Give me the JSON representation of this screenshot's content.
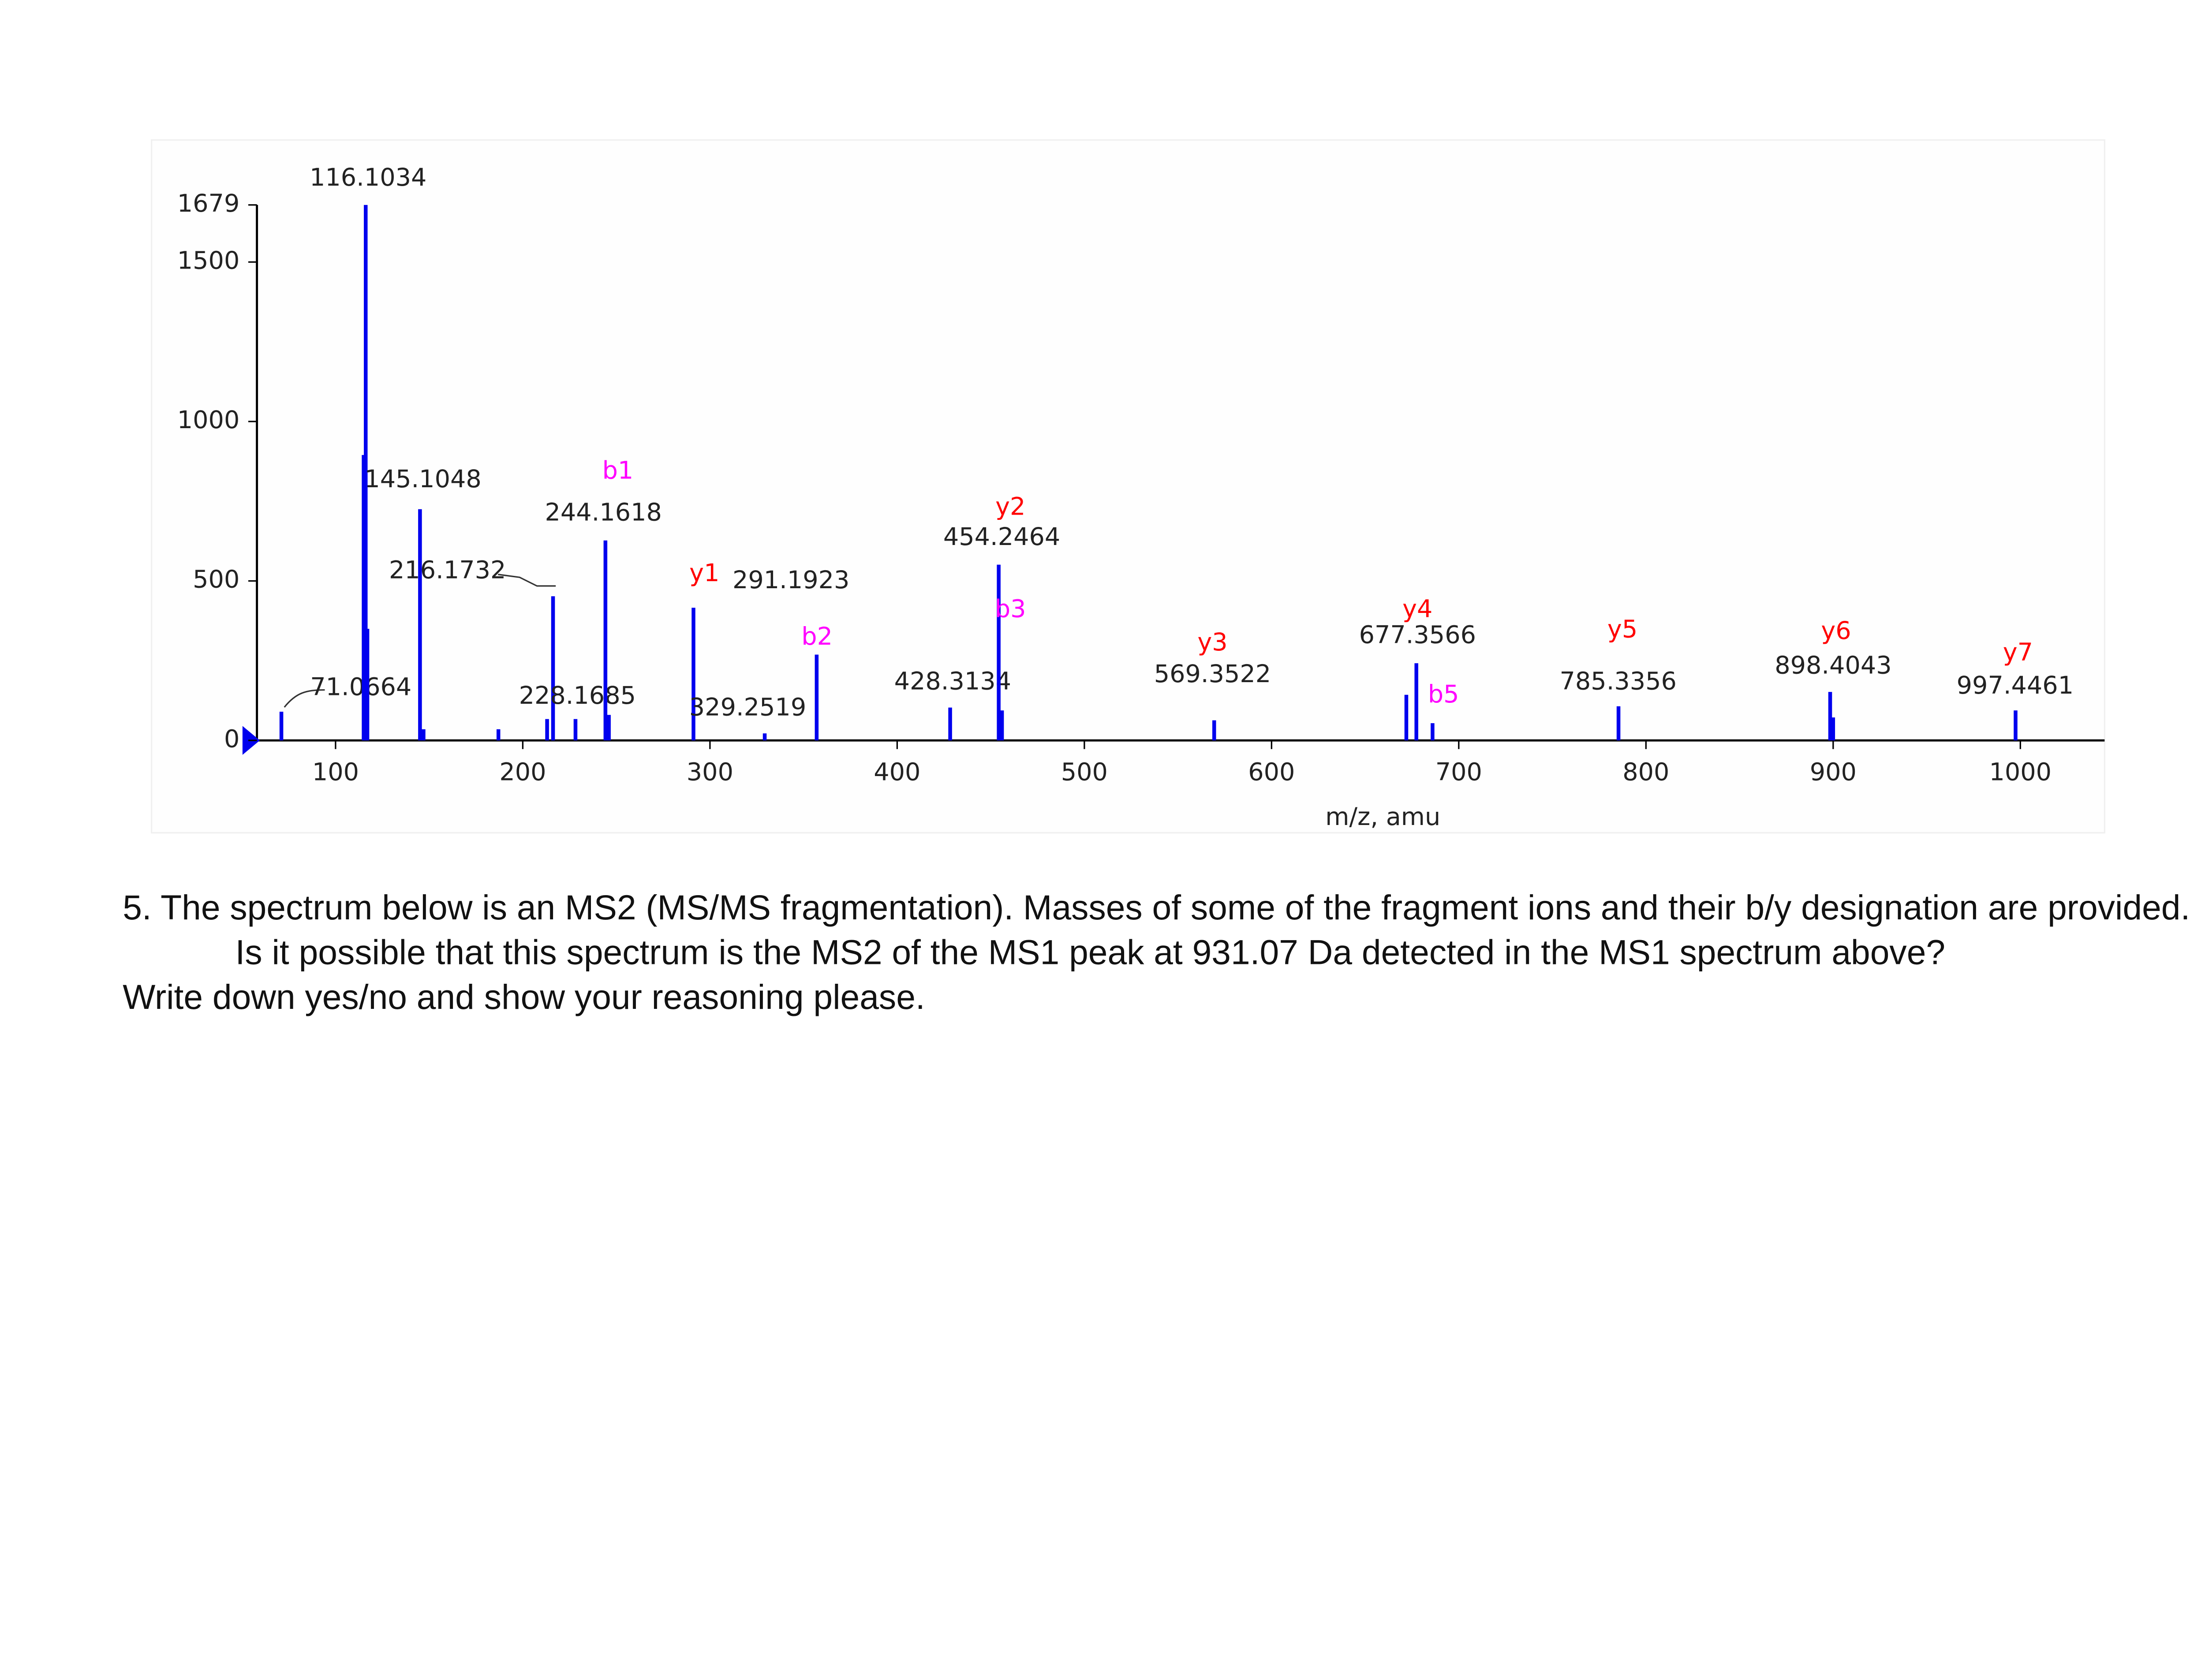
{
  "chart_data": {
    "type": "bar",
    "x_label": "m/z, amu",
    "x": [
      71.0664,
      115,
      116.1034,
      117,
      145.1048,
      147,
      187,
      213,
      216.1732,
      228.1685,
      244.1618,
      246,
      291.1923,
      329.2519,
      357,
      428.3134,
      454.2464,
      456,
      569.3522,
      672,
      677.3566,
      686,
      785.3356,
      898.4043,
      900,
      997.4461
    ],
    "values": [
      90,
      895,
      1679,
      350,
      725,
      35,
      35,
      67,
      452,
      67,
      627,
      80,
      416,
      22,
      269,
      103,
      551,
      94,
      63,
      143,
      242,
      54,
      107,
      152,
      72,
      94
    ],
    "peak_labels": [
      "71.0664",
      null,
      "116.1034",
      null,
      "145.1048",
      null,
      null,
      null,
      "216.1732",
      "228.1685",
      "244.1618",
      null,
      "291.1923",
      "329.2519",
      null,
      "428.3134",
      "454.2464",
      null,
      "569.3522",
      null,
      "677.3566",
      null,
      "785.3356",
      "898.4043",
      null,
      "997.4461"
    ],
    "ions": [
      null,
      null,
      null,
      null,
      null,
      null,
      null,
      null,
      null,
      null,
      {
        "label": "b1",
        "color": "#ff00ff"
      },
      null,
      {
        "label": "y1",
        "color": "#ff0000"
      },
      null,
      {
        "label": "b2",
        "color": "#ff00ff"
      },
      null,
      {
        "label": "y2",
        "color": "#ff0000"
      },
      {
        "label": "b3",
        "color": "#ff00ff"
      },
      {
        "label": "y3",
        "color": "#ff0000"
      },
      null,
      {
        "label": "y4",
        "color": "#ff0000"
      },
      {
        "label": "b5",
        "color": "#ff00ff"
      },
      {
        "label": "y5",
        "color": "#ff0000"
      },
      {
        "label": "y6",
        "color": "#ff0000"
      },
      null,
      {
        "label": "y7",
        "color": "#ff0000"
      }
    ],
    "color": "#0000ee",
    "xlim": [
      58,
      1045
    ],
    "xticks": [
      100,
      200,
      300,
      400,
      500,
      600,
      700,
      800,
      900,
      1000
    ],
    "ylim": [
      0,
      1679
    ],
    "yticks": [
      0,
      500,
      1000,
      1500,
      1679
    ]
  },
  "question": {
    "number": "5.",
    "text": "The spectrum below is an MS2 (MS/MS fragmentation). Masses of some of the fragment ions and their b/y designation are provided. Is it possible that this spectrum is the MS2 of the MS1 peak at 931.07 Da detected in the MS1 spectrum above?",
    "instruction": "Write down yes/no and show your reasoning please."
  }
}
